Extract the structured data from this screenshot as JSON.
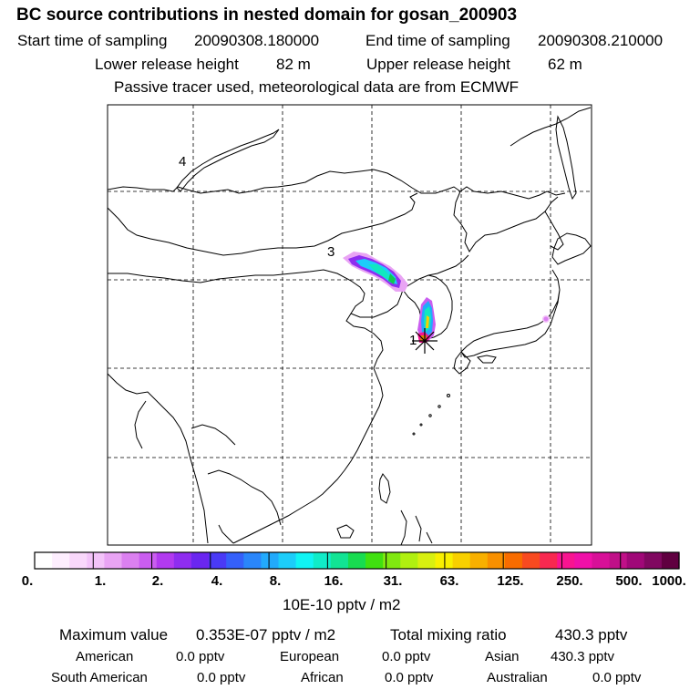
{
  "header": {
    "title": "BC  source contributions in nested domain for gosan_200903",
    "start_label": "Start time of sampling",
    "start_value": "20090308.180000",
    "end_label": "End time of sampling",
    "end_value": "20090308.210000",
    "lower_label": "Lower release height",
    "lower_value": "82 m",
    "upper_label": "Upper release height",
    "upper_value": "62 m",
    "info": "Passive tracer used, meteorological data are from ECMWF"
  },
  "map": {
    "markers": [
      "1",
      "3",
      "4"
    ],
    "source_marker": "receptor-star"
  },
  "colorbar": {
    "ticks": [
      "0.",
      "1.",
      "2.",
      "4.",
      "8.",
      "16.",
      "31.",
      "63.",
      "125.",
      "250.",
      "500.",
      "1000."
    ],
    "unit": "10E-10 pptv / m2",
    "colors": [
      "#ffffff",
      "#fdeefe",
      "#f9d8fb",
      "#f3c3f9",
      "#e9a4f4",
      "#db80f0",
      "#ca5df0",
      "#b23af0",
      "#8f2df0",
      "#6a26f0",
      "#4a3af6",
      "#3560fa",
      "#2a86fb",
      "#22aafc",
      "#1ccdfa",
      "#10f4f4",
      "#10ecc8",
      "#12e494",
      "#18dc50",
      "#40e010",
      "#80e810",
      "#b0f010",
      "#d8f010",
      "#f8f000",
      "#f8d000",
      "#f8b000",
      "#f89000",
      "#f86c00",
      "#f84a20",
      "#f82850",
      "#f81490",
      "#f010a8",
      "#d81098",
      "#c01088",
      "#a00878",
      "#800860",
      "#600040"
    ]
  },
  "stats": {
    "max_label": "Maximum value",
    "max_value": "0.353E-07 pptv / m2",
    "total_label": "Total mixing ratio",
    "total_value": "430.3 pptv",
    "regions": [
      {
        "name": "American",
        "value": "0.0 pptv"
      },
      {
        "name": "European",
        "value": "0.0 pptv"
      },
      {
        "name": "Asian",
        "value": "430.3 pptv"
      },
      {
        "name": "South American",
        "value": "0.0 pptv"
      },
      {
        "name": "African",
        "value": "0.0 pptv"
      },
      {
        "name": "Australian",
        "value": "0.0 pptv"
      }
    ]
  }
}
